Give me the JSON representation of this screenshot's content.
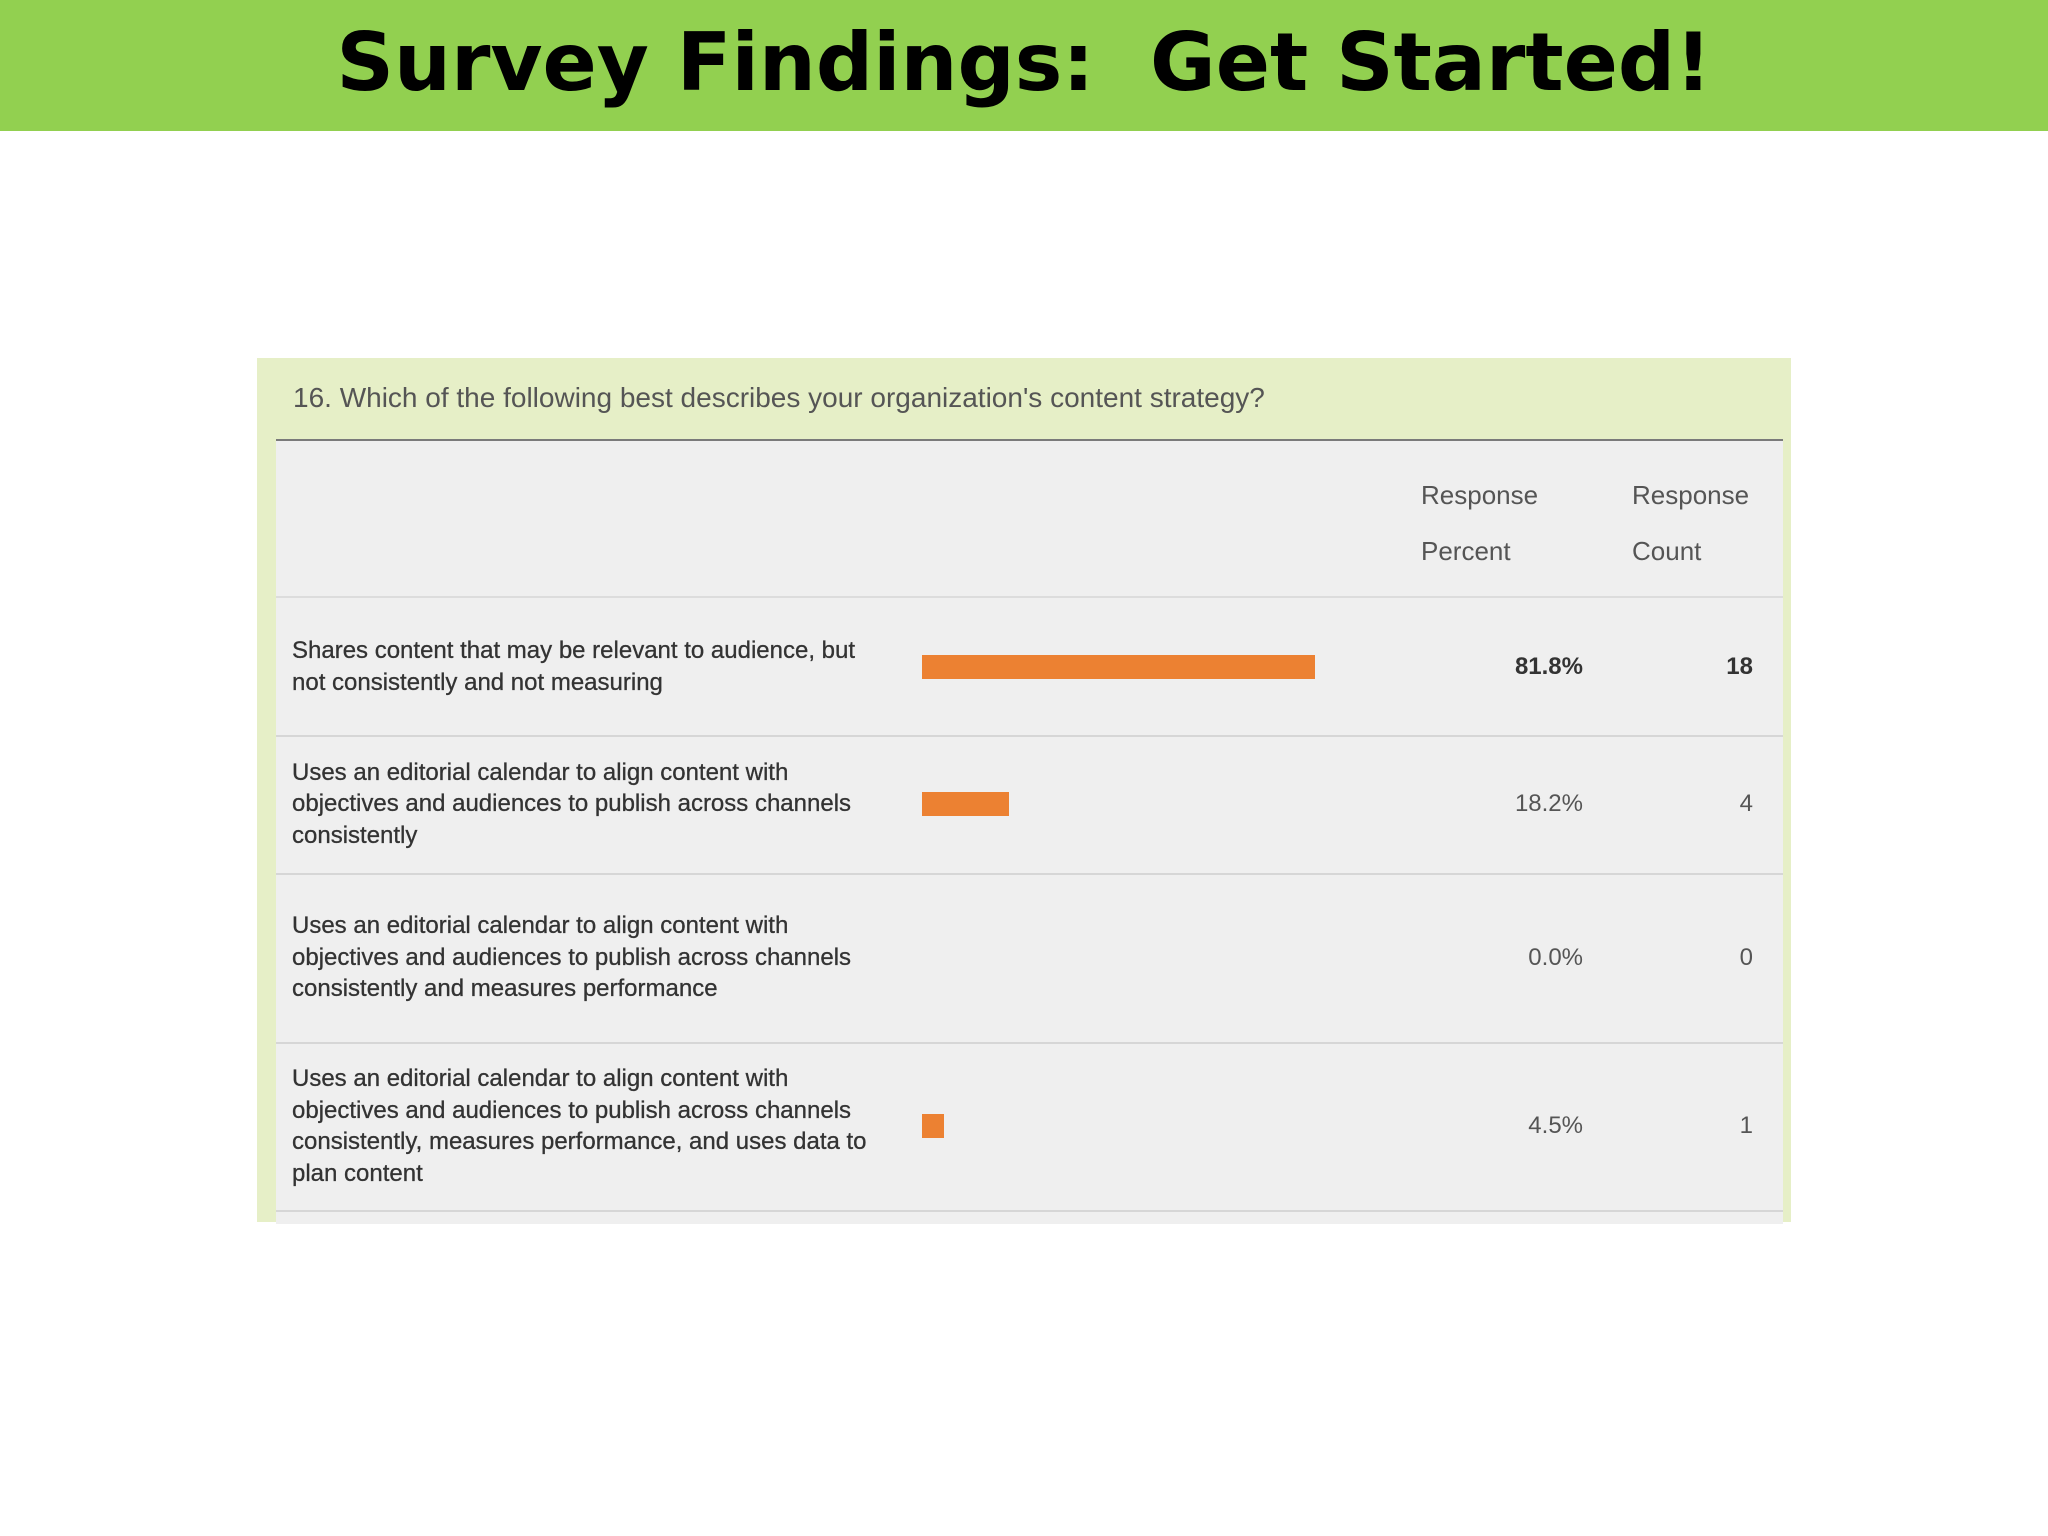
{
  "slide": {
    "title": "Survey Findings:  Get Started!"
  },
  "survey": {
    "question": "16. Which of the following best describes your organization's content strategy?",
    "header": {
      "percent_line1": "Response",
      "percent_line2": "Percent",
      "count_line1": "Response",
      "count_line2": "Count"
    }
  },
  "chart_data": {
    "type": "bar",
    "title": "16. Which of the following best describes your organization's content strategy?",
    "orientation": "horizontal",
    "categories": [
      "Shares content that may be relevant to audience, but not consistently and not measuring",
      "Uses an editorial calendar to align content with objectives and audiences to publish across channels consistently",
      "Uses an editorial calendar to align content with objectives and audiences to publish across channels consistently and measures performance",
      "Uses an editorial calendar to align content with objectives and audiences to publish across channels consistently, measures performance, and uses data to plan content"
    ],
    "values": [
      81.8,
      18.2,
      0.0,
      4.5
    ],
    "percent_labels": [
      "81.8%",
      "18.2%",
      "0.0%",
      "4.5%"
    ],
    "counts": [
      "18",
      "4",
      "0",
      "1"
    ],
    "columns": [
      "Response Percent",
      "Response Count"
    ],
    "bar_color": "#ec8132",
    "xlim": [
      0,
      100
    ]
  },
  "colors": {
    "title_bar": "#92d050",
    "panel_background": "#e6efc7",
    "table_background": "#efefef",
    "bar": "#ec8132"
  }
}
